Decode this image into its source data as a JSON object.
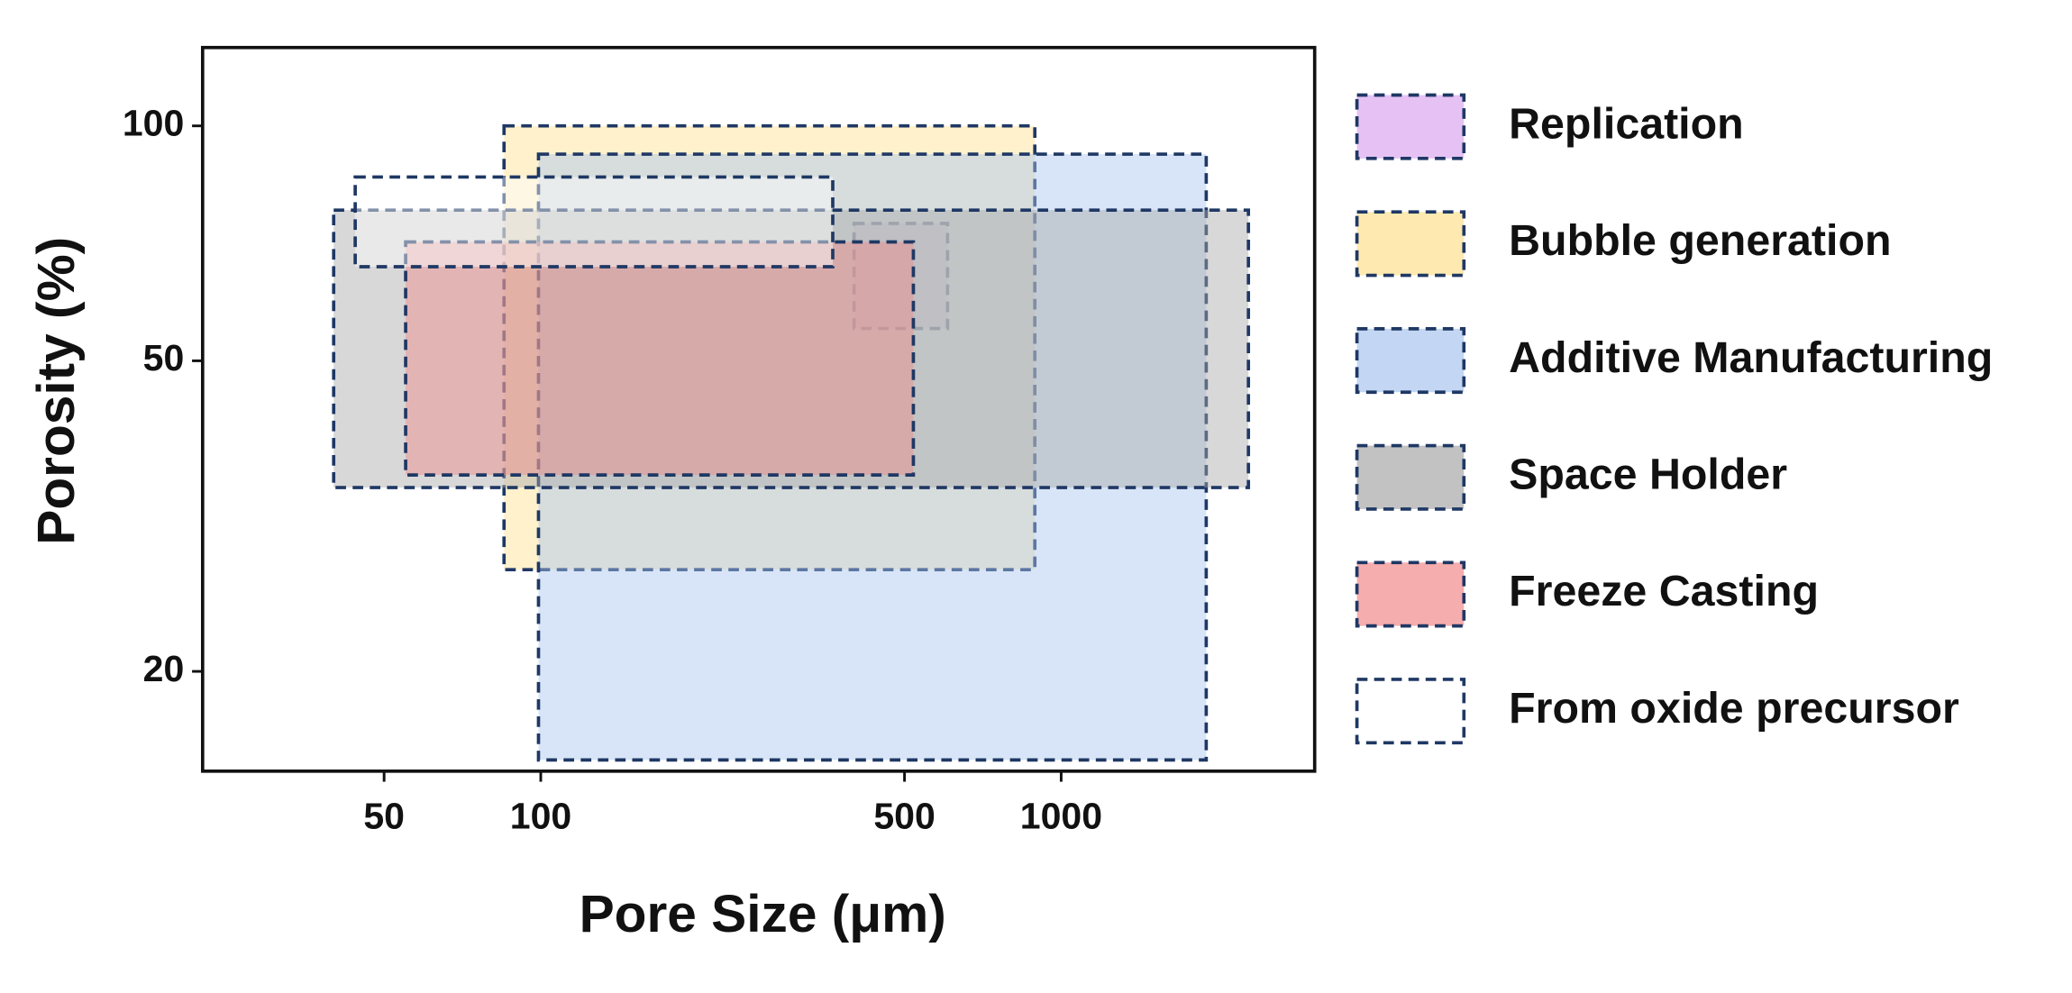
{
  "chart_data": {
    "type": "range-box",
    "x_label": "Pore Size (μm)",
    "y_label": "Porosity (%)",
    "xscale": "log",
    "yscale": "log",
    "xlim": [
      22.4,
      3070
    ],
    "ylim": [
      14.9,
      126
    ],
    "xticks": [
      50,
      100,
      500,
      1000
    ],
    "yticks": [
      20,
      50,
      100
    ],
    "edge_color": "#1f3864",
    "series": [
      {
        "name": "Replication",
        "color": "#dba8f0",
        "x": [
          400,
          605
        ],
        "y": [
          55,
          75
        ]
      },
      {
        "name": "Bubble generation",
        "color": "#fde08e",
        "x": [
          85,
          890
        ],
        "y": [
          27,
          100
        ]
      },
      {
        "name": "Additive Manufacturing",
        "color": "#a9c6ef",
        "x": [
          99,
          1900
        ],
        "y": [
          15.4,
          92
        ]
      },
      {
        "name": "Space Holder",
        "color": "#a8a8a8",
        "x": [
          40,
          2290
        ],
        "y": [
          34.4,
          78
        ]
      },
      {
        "name": "Freeze Casting",
        "color": "#f28a8a",
        "x": [
          55,
          520
        ],
        "y": [
          35.7,
          71
        ]
      },
      {
        "name": "From oxide precursor",
        "color": "#ffffff",
        "x": [
          44,
          364
        ],
        "y": [
          66,
          86
        ]
      }
    ]
  }
}
